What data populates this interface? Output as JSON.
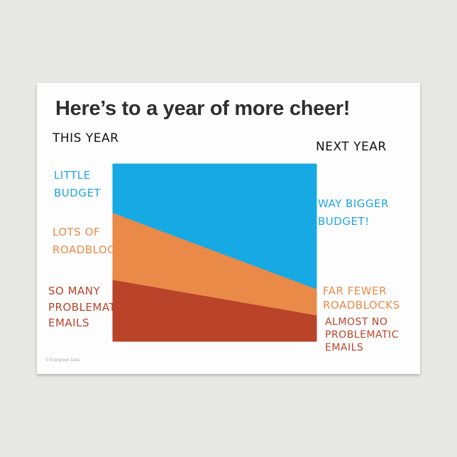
{
  "title": "Here’s to a year of more cheer!",
  "copyright": "© Evergreen Data",
  "chart_data": {
    "type": "area",
    "stacked": true,
    "normalized_percent": true,
    "categories": [
      "This Year",
      "Next Year"
    ],
    "category_labels": [
      "THIS YEAR",
      "NEXT YEAR"
    ],
    "series": [
      {
        "key": "emails",
        "values": [
          35,
          15
        ],
        "color": "#b9442a",
        "left_label": [
          "SO MANY",
          "PROBLEMATIC",
          "EMAILS"
        ],
        "right_label": [
          "ALMOST NO",
          "PROBLEMATIC",
          "EMAILS"
        ]
      },
      {
        "key": "roadblocks",
        "values": [
          38,
          15
        ],
        "color": "#ea8a48",
        "left_label": [
          "LOTS OF",
          "ROADBLOCKS"
        ],
        "right_label": [
          "FAR FEWER",
          "ROADBLOCKS"
        ]
      },
      {
        "key": "budget",
        "values": [
          27,
          70
        ],
        "color": "#17a9e3",
        "left_label": [
          "LITTLE",
          "BUDGET"
        ],
        "right_label": [
          "WAY BIGGER",
          "BUDGET!"
        ]
      }
    ],
    "ylim": [
      0,
      100
    ],
    "grid": false,
    "legend": "none"
  }
}
